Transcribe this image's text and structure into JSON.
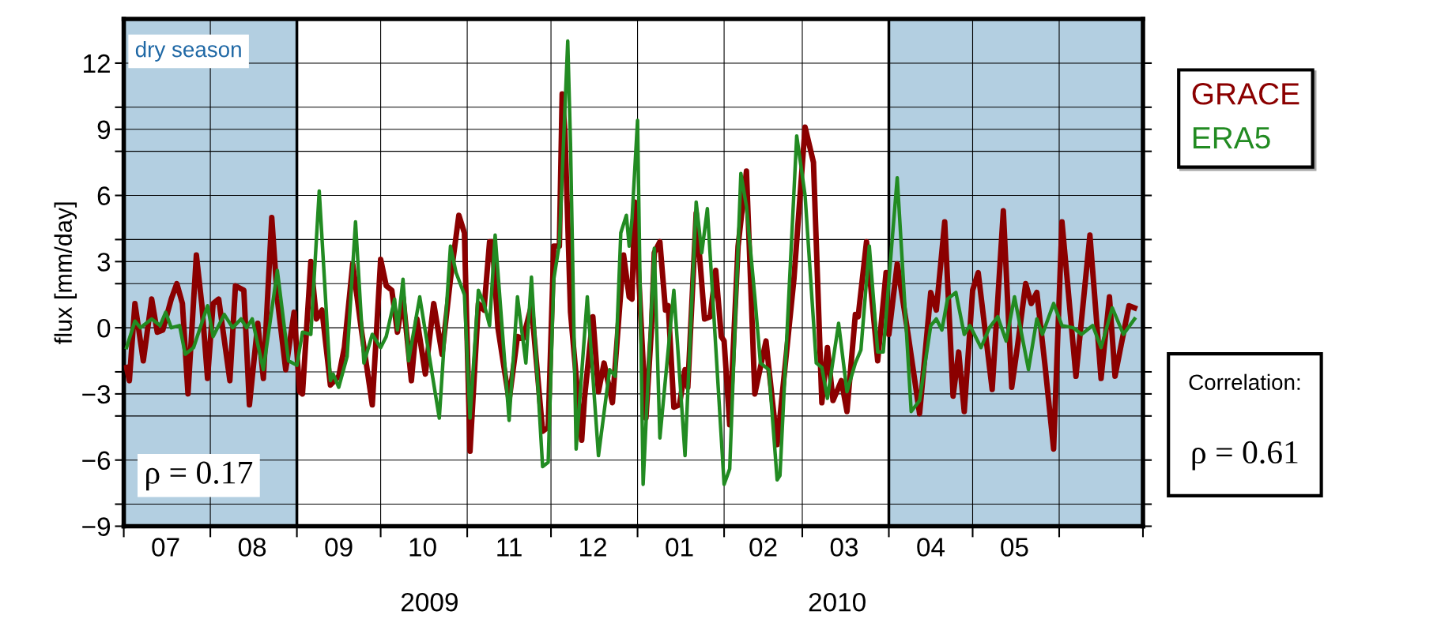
{
  "chart_data": {
    "type": "line",
    "ylabel": "flux [mm/day]",
    "xlim": [
      "2009-07-01",
      "2010-07-01"
    ],
    "xticks": [
      {
        "value": "2009-07-01",
        "label": null
      },
      {
        "value": "2009-08-01",
        "label": null
      },
      {
        "value": "2009-09-01",
        "label": null
      },
      {
        "value": "2009-10-01",
        "label": null
      },
      {
        "value": "2009-11-01",
        "label": null
      },
      {
        "value": "2009-12-01",
        "label": null
      },
      {
        "value": "2010-01-01",
        "label": null
      },
      {
        "value": "2010-02-01",
        "label": null
      },
      {
        "value": "2010-03-01",
        "label": null
      },
      {
        "value": "2010-04-01",
        "label": null
      },
      {
        "value": "2010-05-01",
        "label": null
      },
      {
        "value": "2010-06-01",
        "label": null
      },
      {
        "value": "2010-07-01",
        "label": null
      },
      {
        "value": "2009-07-16",
        "label": "07"
      },
      {
        "value": "2009-08-16",
        "label": "08"
      },
      {
        "value": "2009-09-16",
        "label": "09"
      },
      {
        "value": "2009-10-16",
        "label": "10"
      },
      {
        "value": "2009-11-16",
        "label": "11"
      },
      {
        "value": "2009-12-16",
        "label": "12"
      },
      {
        "value": "2010-01-16",
        "label": "01"
      },
      {
        "value": "2010-02-15",
        "label": "02"
      },
      {
        "value": "2010-03-16",
        "label": "03"
      },
      {
        "value": "2010-04-16",
        "label": "04"
      },
      {
        "value": "2010-05-16",
        "label": "05"
      }
    ],
    "ylim": [
      -9,
      14
    ],
    "yticks": [
      {
        "value": -9,
        "label": "−9"
      },
      {
        "value": -6,
        "label": "−6"
      },
      {
        "value": -3,
        "label": "−3"
      },
      0,
      3,
      6,
      9,
      12,
      {
        "value": -8,
        "label": null
      },
      {
        "value": -4,
        "label": null
      },
      {
        "value": -2,
        "label": null
      },
      {
        "value": 2,
        "label": null
      },
      {
        "value": 4,
        "label": null
      },
      {
        "value": 8,
        "label": null
      },
      {
        "value": 10,
        "label": null
      }
    ],
    "grid": true,
    "legend": "right",
    "marker": "none",
    "line_style": "solid",
    "bands": [
      {
        "axis": "x",
        "from": "2009-07-01",
        "to": "2009-09-01",
        "label": "dry season",
        "color": "#b3cfe1"
      },
      {
        "axis": "x",
        "from": "2010-04-01",
        "to": "2010-07-01",
        "color": "#b3cfe1"
      }
    ],
    "annotations": [
      "ρ = 0.17",
      "Correlation:",
      "ρ = 0.61",
      "2009",
      "2010"
    ],
    "series": [
      {
        "name": "GRACE",
        "color": "#8b0000",
        "x": [
          "2009-07-02",
          "2009-07-03",
          "2009-07-05",
          "2009-07-08",
          "2009-07-11",
          "2009-07-13",
          "2009-07-15",
          "2009-07-18",
          "2009-07-20",
          "2009-07-22",
          "2009-07-24",
          "2009-07-27",
          "2009-07-29",
          "2009-07-31",
          "2009-08-02",
          "2009-08-04",
          "2009-08-08",
          "2009-08-10",
          "2009-08-13",
          "2009-08-15",
          "2009-08-18",
          "2009-08-20",
          "2009-08-23",
          "2009-08-25",
          "2009-08-28",
          "2009-08-31",
          "2009-09-02",
          "2009-09-03",
          "2009-09-06",
          "2009-09-08",
          "2009-09-10",
          "2009-09-13",
          "2009-09-16",
          "2009-09-18",
          "2009-09-21",
          "2009-09-24",
          "2009-09-28",
          "2009-10-01",
          "2009-10-03",
          "2009-10-05",
          "2009-10-07",
          "2009-10-09",
          "2009-10-12",
          "2009-10-14",
          "2009-10-17",
          "2009-10-20",
          "2009-10-23",
          "2009-10-26",
          "2009-10-29",
          "2009-10-31",
          "2009-11-02",
          "2009-11-05",
          "2009-11-07",
          "2009-11-09",
          "2009-11-10",
          "2009-11-12",
          "2009-11-16",
          "2009-11-19",
          "2009-11-21",
          "2009-11-24",
          "2009-11-28",
          "2009-11-30",
          "2009-12-02",
          "2009-12-04",
          "2009-12-05",
          "2009-12-06",
          "2009-12-08",
          "2009-12-12",
          "2009-12-13",
          "2009-12-16",
          "2009-12-18",
          "2009-12-20",
          "2009-12-23",
          "2009-12-27",
          "2009-12-29",
          "2009-12-30",
          "2009-12-31",
          "2010-01-01",
          "2010-01-04",
          "2010-01-06",
          "2010-01-07",
          "2010-01-09",
          "2010-01-11",
          "2010-01-12",
          "2010-01-14",
          "2010-01-16",
          "2010-01-18",
          "2010-01-19",
          "2010-01-22",
          "2010-01-25",
          "2010-01-27",
          "2010-01-29",
          "2010-01-31",
          "2010-02-01",
          "2010-02-03",
          "2010-02-06",
          "2010-02-09",
          "2010-02-12",
          "2010-02-16",
          "2010-02-17",
          "2010-02-20",
          "2010-02-26",
          "2010-03-02",
          "2010-03-05",
          "2010-03-08",
          "2010-03-10",
          "2010-03-12",
          "2010-03-15",
          "2010-03-17",
          "2010-03-20",
          "2010-03-21",
          "2010-03-24",
          "2010-03-28",
          "2010-03-31",
          "2010-04-01",
          "2010-04-04",
          "2010-04-08",
          "2010-04-12",
          "2010-04-16",
          "2010-04-18",
          "2010-04-21",
          "2010-04-24",
          "2010-04-26",
          "2010-04-28",
          "2010-05-01",
          "2010-05-03",
          "2010-05-08",
          "2010-05-12",
          "2010-05-15",
          "2010-05-17",
          "2010-05-20",
          "2010-05-22",
          "2010-05-24",
          "2010-05-27",
          "2010-05-30",
          "2010-06-02",
          "2010-06-07",
          "2010-06-12",
          "2010-06-16",
          "2010-06-19",
          "2010-06-21",
          "2010-06-23",
          "2010-06-26",
          "2010-06-28"
        ],
        "values": [
          -1.8,
          -2.4,
          1.1,
          -1.5,
          1.3,
          -0.2,
          -0.1,
          1.3,
          2.0,
          1.1,
          -3.0,
          3.3,
          1.0,
          -2.3,
          1.1,
          1.3,
          -2.4,
          1.9,
          1.7,
          -3.5,
          0.2,
          -2.3,
          5.0,
          1.3,
          -1.9,
          0.7,
          -2.9,
          -3.0,
          3.0,
          0.4,
          0.8,
          -2.6,
          -2.2,
          -0.9,
          2.9,
          0.0,
          -3.5,
          3.1,
          1.9,
          1.7,
          -0.2,
          1.4,
          -2.4,
          0.4,
          -2.1,
          1.1,
          -1.2,
          2.2,
          5.1,
          4.3,
          -5.6,
          1.1,
          0.8,
          3.9,
          3.9,
          0.0,
          -3.3,
          -0.4,
          -0.5,
          1.0,
          -4.7,
          -4.5,
          3.7,
          3.7,
          10.6,
          8.9,
          0.7,
          -5.1,
          -3.2,
          0.5,
          -2.9,
          -1.6,
          -3.4,
          3.3,
          1.4,
          1.3,
          5.7,
          3.4,
          -4.1,
          0.0,
          3.4,
          3.9,
          0.8,
          1.0,
          -3.6,
          -3.5,
          -1.9,
          -2.7,
          5.2,
          0.4,
          0.5,
          2.6,
          -0.4,
          -0.6,
          -4.4,
          3.7,
          7.1,
          -3.0,
          -0.6,
          -1.8,
          -5.3,
          2.2,
          9.1,
          7.5,
          -3.4,
          -0.9,
          -3.3,
          -2.4,
          -3.8,
          0.6,
          0.5,
          3.9,
          -1.5,
          2.5,
          -0.3,
          2.9,
          -0.4,
          -3.9,
          1.6,
          0.8,
          4.8,
          -3.1,
          -1.1,
          -3.8,
          1.7,
          2.5,
          -2.8,
          5.3,
          -2.7,
          -0.9,
          2.0,
          1.1,
          1.6,
          -1.8,
          -5.5,
          4.8,
          -2.2,
          4.2,
          -2.3,
          1.4,
          -2.2,
          -0.9,
          1.0,
          0.9
        ]
      },
      {
        "name": "ERA5",
        "color": "#228b22",
        "x": [
          "2009-07-02",
          "2009-07-05",
          "2009-07-07",
          "2009-07-11",
          "2009-07-14",
          "2009-07-16",
          "2009-07-18",
          "2009-07-21",
          "2009-07-23",
          "2009-07-26",
          "2009-07-31",
          "2009-08-02",
          "2009-08-06",
          "2009-08-09",
          "2009-08-12",
          "2009-08-14",
          "2009-08-16",
          "2009-08-20",
          "2009-08-25",
          "2009-08-29",
          "2009-09-01",
          "2009-09-03",
          "2009-09-06",
          "2009-09-09",
          "2009-09-13",
          "2009-09-14",
          "2009-09-16",
          "2009-09-19",
          "2009-09-22",
          "2009-09-25",
          "2009-09-28",
          "2009-10-01",
          "2009-10-03",
          "2009-10-06",
          "2009-10-07",
          "2009-10-09",
          "2009-10-11",
          "2009-10-15",
          "2009-10-22",
          "2009-10-26",
          "2009-10-28",
          "2009-10-31",
          "2009-11-02",
          "2009-11-05",
          "2009-11-07",
          "2009-11-09",
          "2009-11-11",
          "2009-11-16",
          "2009-11-19",
          "2009-11-22",
          "2009-11-24",
          "2009-11-28",
          "2009-11-30",
          "2009-12-02",
          "2009-12-04",
          "2009-12-07",
          "2009-12-08",
          "2009-12-10",
          "2009-12-14",
          "2009-12-18",
          "2009-12-22",
          "2009-12-24",
          "2009-12-26",
          "2009-12-28",
          "2009-12-29",
          "2009-12-30",
          "2010-01-01",
          "2010-01-03",
          "2010-01-07",
          "2010-01-09",
          "2010-01-14",
          "2010-01-18",
          "2010-01-22",
          "2010-01-24",
          "2010-01-26",
          "2010-02-01",
          "2010-02-03",
          "2010-02-07",
          "2010-02-09",
          "2010-02-12",
          "2010-02-14",
          "2010-02-17",
          "2010-02-20",
          "2010-02-21",
          "2010-02-27",
          "2010-03-02",
          "2010-03-06",
          "2010-03-08",
          "2010-03-10",
          "2010-03-14",
          "2010-03-17",
          "2010-03-20",
          "2010-03-22",
          "2010-03-25",
          "2010-03-28",
          "2010-03-30",
          "2010-04-02",
          "2010-04-04",
          "2010-04-09",
          "2010-04-12",
          "2010-04-16",
          "2010-04-18",
          "2010-04-20",
          "2010-04-22",
          "2010-04-25",
          "2010-04-28",
          "2010-04-30",
          "2010-05-04",
          "2010-05-07",
          "2010-05-10",
          "2010-05-13",
          "2010-05-16",
          "2010-05-21",
          "2010-05-24",
          "2010-05-26",
          "2010-05-30",
          "2010-06-02",
          "2010-06-06",
          "2010-06-09",
          "2010-06-13",
          "2010-06-16",
          "2010-06-20",
          "2010-06-24",
          "2010-06-28"
        ],
        "values": [
          -0.9,
          0.3,
          0.0,
          0.4,
          0.1,
          0.7,
          0.0,
          0.1,
          -1.2,
          -0.9,
          1.0,
          -0.4,
          0.6,
          0.0,
          0.4,
          0.0,
          0.4,
          -1.9,
          2.6,
          -1.5,
          -1.7,
          -0.2,
          -0.3,
          6.2,
          -2.4,
          -2.1,
          -2.7,
          -1.3,
          4.8,
          -1.6,
          -0.3,
          -0.9,
          -0.4,
          1.3,
          -0.1,
          2.2,
          -1.5,
          1.4,
          -4.1,
          3.7,
          2.5,
          1.5,
          -4.1,
          1.7,
          1.1,
          0.1,
          4.2,
          -4.2,
          1.4,
          -1.6,
          2.3,
          -6.3,
          -6.1,
          2.2,
          3.8,
          13.0,
          8.3,
          -5.5,
          1.4,
          -5.8,
          -1.9,
          -2.2,
          4.3,
          5.1,
          3.7,
          4.9,
          9.4,
          -7.1,
          3.6,
          -5.0,
          1.7,
          -5.8,
          5.7,
          3.4,
          5.4,
          -7.1,
          -6.4,
          7.0,
          5.5,
          1.4,
          -1.6,
          -1.9,
          -6.9,
          -6.7,
          8.7,
          6.0,
          -1.6,
          -1.8,
          -3.2,
          0.2,
          -2.9,
          -1.6,
          -1.0,
          3.7,
          -1.1,
          -1.1,
          3.7,
          6.8,
          -3.8,
          -3.3,
          0.1,
          0.4,
          -0.1,
          1.3,
          1.6,
          -0.3,
          0.1,
          -0.9,
          0.0,
          0.5,
          -0.6,
          1.4,
          -1.9,
          0.4,
          -0.3,
          1.1,
          0.1,
          0.0,
          -0.3,
          0.1,
          -0.9,
          0.9,
          -0.3,
          0.4
        ]
      }
    ]
  }
}
